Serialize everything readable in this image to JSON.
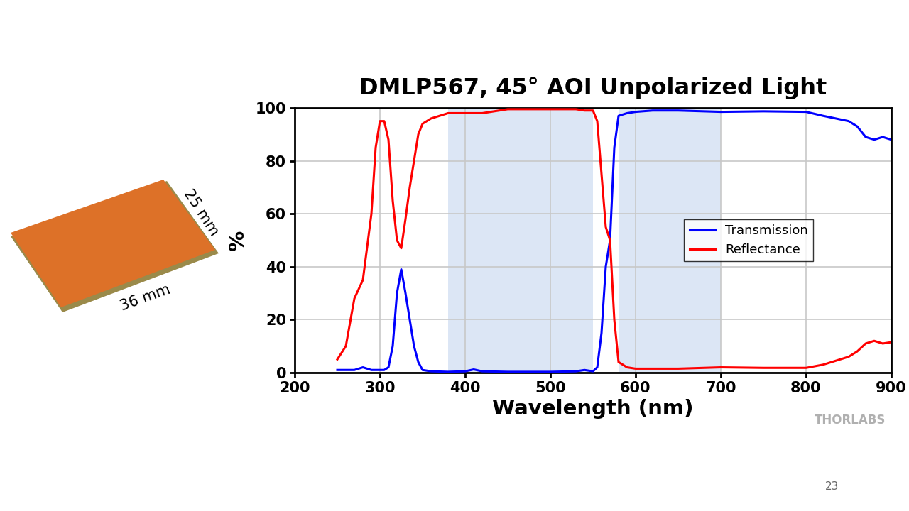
{
  "chart_data": {
    "type": "line",
    "title": "DMLP567, 45° AOI Unpolarized Light",
    "x_label": "Wavelength (nm)",
    "y_label": "%",
    "x": [
      250,
      260,
      270,
      280,
      290,
      295,
      300,
      305,
      310,
      315,
      320,
      325,
      330,
      335,
      340,
      345,
      350,
      360,
      380,
      400,
      410,
      420,
      450,
      500,
      530,
      540,
      550,
      555,
      560,
      565,
      570,
      575,
      580,
      590,
      600,
      620,
      650,
      700,
      750,
      800,
      820,
      850,
      860,
      870,
      880,
      890,
      900
    ],
    "series": [
      {
        "name": "Transmission",
        "color": "#0000ff",
        "values": [
          1,
          1,
          1,
          2,
          1,
          1,
          1,
          1,
          2,
          10,
          30,
          39,
          30,
          20,
          10,
          4,
          1,
          0.5,
          0.3,
          0.5,
          1.2,
          0.5,
          0.3,
          0.3,
          0.5,
          1,
          0.5,
          2,
          15,
          40,
          50,
          85,
          97,
          98,
          98.5,
          99,
          99,
          98.5,
          98.7,
          98.5,
          97,
          95,
          93,
          89,
          88,
          89,
          88
        ]
      },
      {
        "name": "Reflectance",
        "color": "#ff0000",
        "values": [
          5,
          10,
          28,
          35,
          60,
          85,
          95,
          95,
          88,
          65,
          50,
          47,
          58,
          70,
          80,
          90,
          94,
          96,
          98,
          98,
          98,
          98,
          99.5,
          99.5,
          99.5,
          99,
          99,
          95,
          75,
          55,
          50,
          20,
          4,
          2,
          1.5,
          1.5,
          1.5,
          2,
          1.8,
          1.8,
          3,
          6,
          8,
          11,
          12,
          11,
          11.5
        ]
      }
    ],
    "shaded_regions": [
      [
        380,
        550
      ],
      [
        580,
        700
      ]
    ],
    "xlim": [
      200,
      900
    ],
    "xticks": [
      200,
      300,
      400,
      500,
      600,
      700,
      800,
      900
    ],
    "ylim": [
      0,
      100
    ],
    "yticks": [
      0,
      20,
      40,
      60,
      80,
      100
    ],
    "grid": true,
    "legend": "center right"
  },
  "slide": {
    "filter_height_label": "25 mm",
    "filter_width_label": "36 mm",
    "logo": "THORLABS",
    "page_number": "23"
  }
}
